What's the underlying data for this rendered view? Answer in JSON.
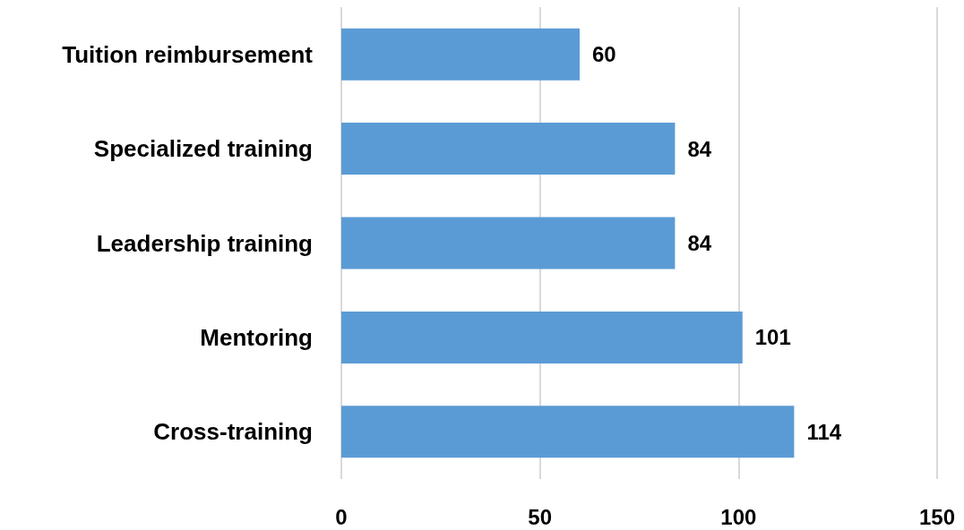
{
  "chart_data": {
    "type": "bar",
    "orientation": "horizontal",
    "categories": [
      "Tuition reimbursement",
      "Specialized training",
      "Leadership training",
      "Mentoring",
      "Cross-training"
    ],
    "values": [
      60,
      84,
      84,
      101,
      114
    ],
    "color": "#5b9bd5",
    "xlim": [
      0,
      150
    ],
    "xticks": [
      0,
      50,
      100,
      150
    ],
    "grid": "x",
    "data_labels": true
  }
}
